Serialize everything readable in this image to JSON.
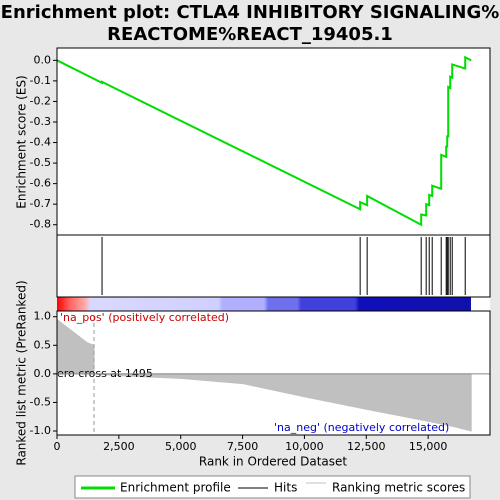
{
  "chart_data": [
    {
      "type": "line",
      "title": [
        "Enrichment plot: CTLA4 INHIBITORY SIGNALING%",
        "REACTOME%REACT_19405.1"
      ],
      "y_label": "Enrichment score (ES)",
      "x": [
        0,
        1820,
        1820,
        12252,
        12252,
        12535,
        12535,
        14719,
        14719,
        14921,
        14921,
        15043,
        15043,
        15164,
        15164,
        15528,
        15528,
        15730,
        15730,
        15770,
        15770,
        15811,
        15811,
        15892,
        15892,
        15973,
        15973,
        16498,
        16498,
        16740
      ],
      "values": [
        0,
        -0.11,
        -0.105,
        -0.725,
        -0.69,
        -0.705,
        -0.66,
        -0.8,
        -0.75,
        -0.755,
        -0.7,
        -0.705,
        -0.655,
        -0.66,
        -0.61,
        -0.625,
        -0.46,
        -0.47,
        -0.42,
        -0.42,
        -0.37,
        -0.37,
        -0.13,
        -0.135,
        -0.08,
        -0.085,
        -0.02,
        -0.04,
        0.015,
        0
      ],
      "color": "#00dd00",
      "hits": [
        1820,
        12252,
        12535,
        14719,
        14921,
        15043,
        15164,
        15528,
        15730,
        15770,
        15811,
        15892,
        15973,
        16498
      ],
      "xlim": [
        0,
        17500
      ],
      "ylim": [
        -0.85,
        0.06
      ],
      "yticks": [
        {
          "value": 0,
          "label": "0.0"
        },
        {
          "value": -0.1,
          "label": "-0.1"
        },
        {
          "value": -0.2,
          "label": "-0.2"
        },
        {
          "value": -0.3,
          "label": "-0.3"
        },
        {
          "value": -0.4,
          "label": "-0.4"
        },
        {
          "value": -0.5,
          "label": "-0.5"
        },
        {
          "value": -0.6,
          "label": "-0.6"
        },
        {
          "value": -0.7,
          "label": "-0.7"
        },
        {
          "value": -0.8,
          "label": "-0.8"
        }
      ],
      "legend": [
        "Enrichment profile",
        "Hits",
        "Ranking metric scores"
      ]
    },
    {
      "type": "area",
      "y_label": "Ranked list metric (PreRanked)",
      "x_label": "Rank in Ordered Dataset",
      "x": [
        0,
        300,
        700,
        1200,
        1494,
        1495,
        2500,
        5000,
        7500,
        10000,
        12500,
        15000,
        16000,
        16740
      ],
      "values": [
        0.95,
        0.85,
        0.72,
        0.55,
        0.5,
        0,
        -0.03,
        -0.08,
        -0.17,
        -0.4,
        -0.62,
        -0.83,
        -0.92,
        -1.0
      ],
      "color": "#c0c0c0",
      "zero_cross": 1495,
      "annotations": [
        "'na_pos' (positively correlated)",
        "ero cross at 1495",
        "'na_neg' (negatively correlated)"
      ],
      "xlim": [
        0,
        17500
      ],
      "ylim": [
        -1.07,
        1.1
      ],
      "xticks": [
        0,
        {
          "value": 2500,
          "label": "2,500"
        },
        {
          "value": 5000,
          "label": "5,000"
        },
        {
          "value": 7500,
          "label": "7,500"
        },
        {
          "value": 10000,
          "label": "10,000"
        },
        {
          "value": 12500,
          "label": "12,500"
        },
        {
          "value": 15000,
          "label": "15,000"
        }
      ],
      "yticks": [
        {
          "value": 1,
          "label": "1.0"
        },
        {
          "value": 0.5,
          "label": "0.5"
        },
        {
          "value": 0,
          "label": "0.0"
        },
        {
          "value": -0.5,
          "label": "-0.5"
        },
        {
          "value": -1,
          "label": "-1.0"
        }
      ]
    }
  ]
}
